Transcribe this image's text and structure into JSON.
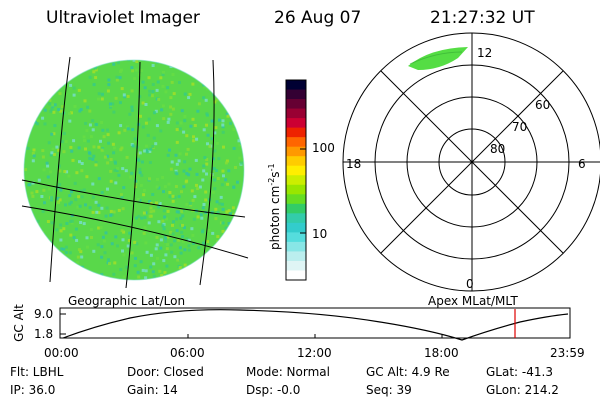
{
  "header": {
    "instrument": "Ultraviolet Imager",
    "date": "26 Aug 07",
    "time": "21:27:32 UT"
  },
  "colorbar": {
    "unit_label": "photon cm",
    "unit_sup1": "-2",
    "unit_mid": "s",
    "unit_sup2": "-1",
    "ticks": [
      "100",
      "10"
    ],
    "colors": [
      "#000033",
      "#330033",
      "#660033",
      "#990033",
      "#cc0033",
      "#ee2200",
      "#ff6600",
      "#ff9900",
      "#ffcc00",
      "#ffee00",
      "#ccee00",
      "#99e600",
      "#66dd22",
      "#33cc66",
      "#33ccaa",
      "#33cccc",
      "#55dddd",
      "#88e6e6",
      "#bbeeee",
      "#dff5f5",
      "#ffffff"
    ]
  },
  "left_panel": {
    "label": "Geographic Lat/Lon",
    "aurora_color": "#55dd44"
  },
  "right_panel": {
    "label": "Apex  MLat/MLT",
    "mlt_labels": {
      "top": "12",
      "left": "18",
      "right": "6",
      "bottom": "0"
    },
    "lat_labels": [
      "60",
      "70",
      "80"
    ]
  },
  "timeline": {
    "ylabel": "GC Alt",
    "y_ticks": [
      "9.0",
      "1.8"
    ],
    "x_ticks": [
      "00:00",
      "06:00",
      "12:00",
      "18:00",
      "23:59"
    ],
    "marker_color": "#dd0000"
  },
  "info": {
    "flt": "Flt: LBHL",
    "ip": "IP: 36.0",
    "door": "Door: Closed",
    "gain": "Gain: 14",
    "mode": "Mode: Normal",
    "dsp": "Dsp:    -0.0",
    "gcalt": "GC Alt: 4.9 Re",
    "seq": "Seq: 39",
    "glat": "GLat: -41.3",
    "glon": "GLon: 214.2"
  }
}
